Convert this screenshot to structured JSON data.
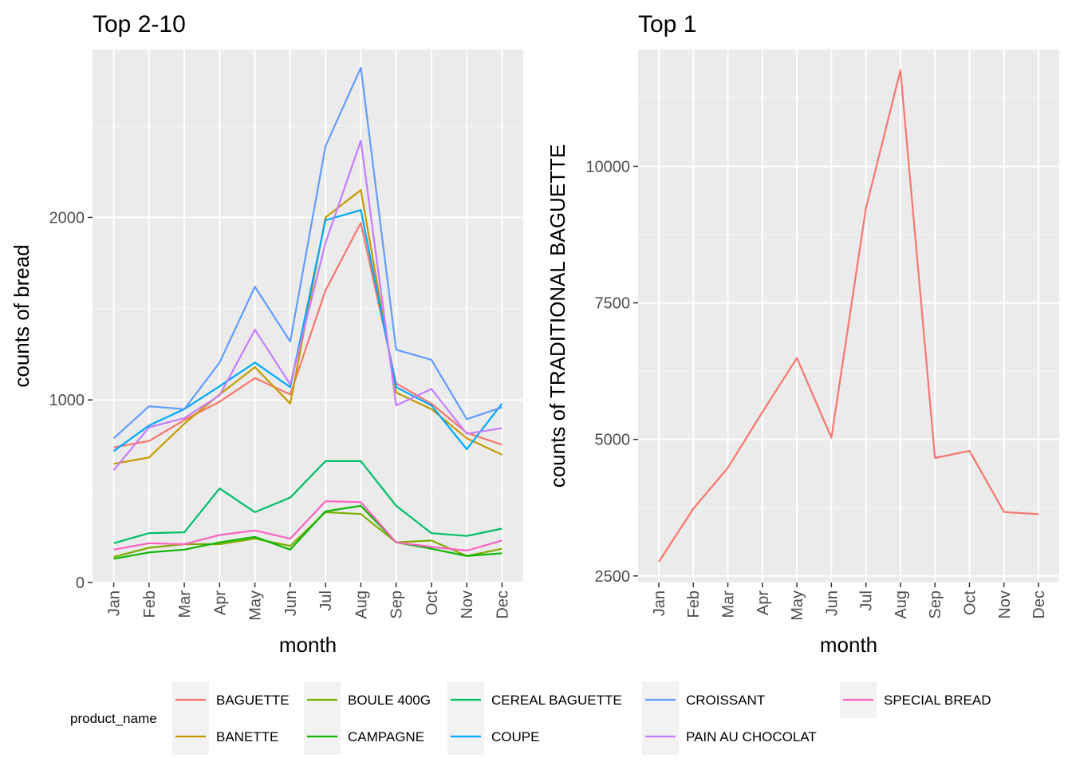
{
  "chart_data": [
    {
      "type": "line",
      "title": "Top 2-10",
      "xlabel": "month",
      "ylabel": "counts of bread",
      "categories": [
        "Jan",
        "Feb",
        "Mar",
        "Apr",
        "May",
        "Jun",
        "Jul",
        "Aug",
        "Sep",
        "Oct",
        "Nov",
        "Dec"
      ],
      "ylim": [
        0,
        2920
      ],
      "yticks": [
        0,
        1000,
        2000
      ],
      "grid": true,
      "series": [
        {
          "name": "BAGUETTE",
          "color": "#F8766D",
          "values": [
            740,
            775,
            890,
            990,
            1120,
            1030,
            1600,
            1970,
            1090,
            980,
            820,
            755
          ]
        },
        {
          "name": "BANETTE",
          "color": "#C49A00",
          "values": [
            650,
            685,
            870,
            1030,
            1180,
            980,
            2000,
            2150,
            1040,
            950,
            790,
            700
          ]
        },
        {
          "name": "BOULE 400G",
          "color": "#7CAE00",
          "values": [
            140,
            190,
            210,
            210,
            240,
            200,
            385,
            375,
            220,
            230,
            145,
            185
          ]
        },
        {
          "name": "CAMPAGNE",
          "color": "#0CB702",
          "values": [
            130,
            165,
            180,
            220,
            250,
            180,
            390,
            420,
            220,
            185,
            145,
            160
          ]
        },
        {
          "name": "CEREAL BAGUETTE",
          "color": "#00BE67",
          "values": [
            215,
            270,
            275,
            515,
            385,
            465,
            665,
            665,
            420,
            270,
            255,
            295
          ]
        },
        {
          "name": "COUPE",
          "color": "#00A9FF",
          "values": [
            720,
            860,
            950,
            1075,
            1205,
            1070,
            1985,
            2040,
            1070,
            970,
            730,
            980
          ]
        },
        {
          "name": "CROISSANT",
          "color": "#619CFF",
          "values": [
            790,
            965,
            950,
            1205,
            1620,
            1320,
            2390,
            2820,
            1275,
            1220,
            895,
            960
          ]
        },
        {
          "name": "PAIN AU CHOCOLAT",
          "color": "#C77CFF",
          "values": [
            615,
            850,
            900,
            1025,
            1385,
            1085,
            1860,
            2420,
            970,
            1060,
            815,
            845
          ]
        },
        {
          "name": "SPECIAL BREAD",
          "color": "#FF61C3",
          "values": [
            180,
            215,
            210,
            260,
            285,
            240,
            445,
            440,
            220,
            195,
            175,
            230
          ]
        }
      ]
    },
    {
      "type": "line",
      "title": "Top 1",
      "xlabel": "month",
      "ylabel": "counts of TRADITIONAL BAGUETTE",
      "categories": [
        "Jan",
        "Feb",
        "Mar",
        "Apr",
        "May",
        "Jun",
        "Jul",
        "Aug",
        "Sep",
        "Oct",
        "Nov",
        "Dec"
      ],
      "ylim": [
        2380,
        12140
      ],
      "yticks": [
        2500,
        5000,
        7500,
        10000
      ],
      "grid": true,
      "series": [
        {
          "name": "TRADITIONAL BAGUETTE",
          "color": "#F8766D",
          "values": [
            2760,
            3730,
            4480,
            5500,
            6490,
            5030,
            9230,
            11760,
            4660,
            4790,
            3670,
            3630
          ]
        }
      ]
    }
  ],
  "legend": {
    "title": "product_name",
    "position": "bottom"
  }
}
